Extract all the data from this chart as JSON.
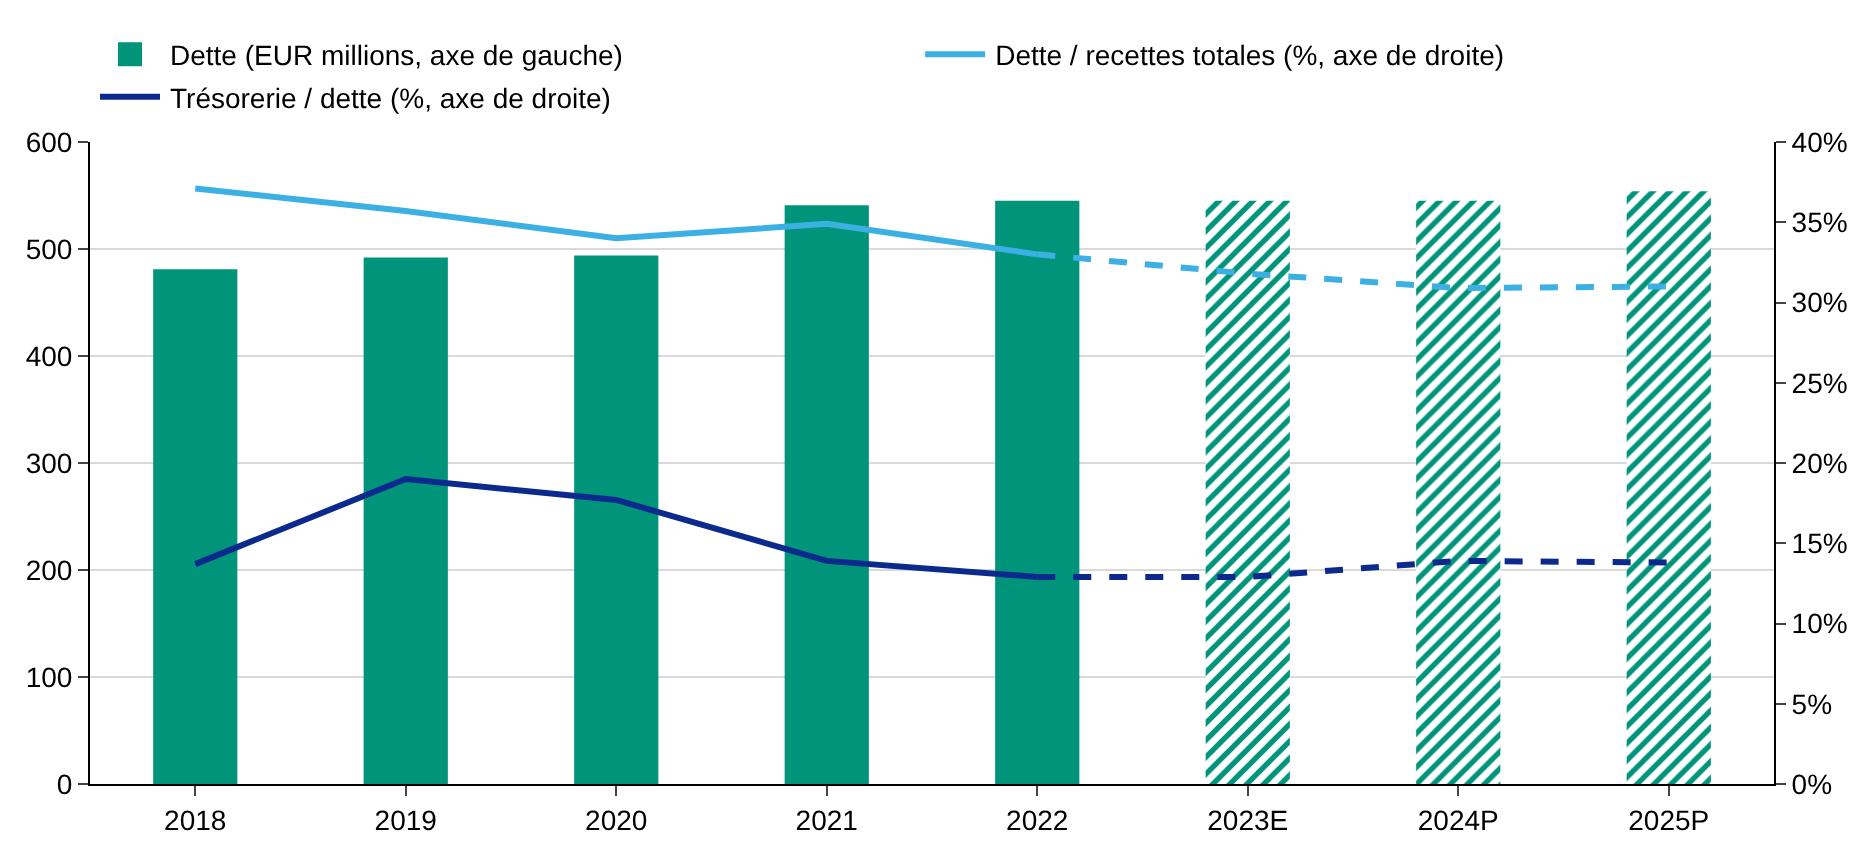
{
  "chart_data": {
    "type": "bar",
    "categories": [
      "2018",
      "2019",
      "2020",
      "2021",
      "2022",
      "2023E",
      "2024P",
      "2025P"
    ],
    "series": [
      {
        "name": "Dette (EUR millions, axe de gauche)",
        "color": "#00957a",
        "values": [
          481,
          492,
          494,
          541,
          545,
          null,
          null,
          null
        ]
      },
      {
        "color": "#00957a",
        "line_style": "dashed",
        "values": [
          null,
          null,
          null,
          null,
          null,
          545,
          545,
          554
        ]
      },
      {
        "name": "Dette / recettes totales (%, axe de droite)",
        "type": "line",
        "axis": "y2",
        "color": "#3cb0e2",
        "line_style": "solid",
        "values": [
          37.1,
          35.7,
          34.0,
          34.9,
          33.0,
          null,
          null,
          null
        ]
      },
      {
        "name": "Trésorerie / dette (%, axe de droite)",
        "type": "line",
        "axis": "y2",
        "color": "#0c2a8e",
        "line_style": "solid",
        "values": [
          13.7,
          19.0,
          17.7,
          13.9,
          12.9,
          null,
          null,
          null
        ]
      },
      {
        "type": "line",
        "axis": "y2",
        "color": "#3cb0e2",
        "line_style": "dashed",
        "values": [
          null,
          null,
          null,
          null,
          33.0,
          31.8,
          30.9,
          31.0
        ]
      },
      {
        "type": "line",
        "axis": "y2",
        "color": "#0c2a8e",
        "line_style": "dashed",
        "values": [
          null,
          null,
          null,
          null,
          12.9,
          12.9,
          13.9,
          13.8
        ]
      }
    ],
    "ylim": [
      0,
      600
    ],
    "yticks": [
      0,
      100,
      200,
      300,
      400,
      500,
      600
    ],
    "y2lim": [
      0,
      40
    ],
    "y2ticks": [
      {
        "value": 0,
        "label": "0%"
      },
      {
        "value": 5,
        "label": "5%"
      },
      {
        "value": 10,
        "label": "10%"
      },
      {
        "value": 15,
        "label": "15%"
      },
      {
        "value": 20,
        "label": "20%"
      },
      {
        "value": 25,
        "label": "25%"
      },
      {
        "value": 30,
        "label": "30%"
      },
      {
        "value": 35,
        "label": "35%"
      },
      {
        "value": 40,
        "label": "40%"
      }
    ],
    "grid": "y",
    "legend": "top",
    "marker": "none"
  }
}
